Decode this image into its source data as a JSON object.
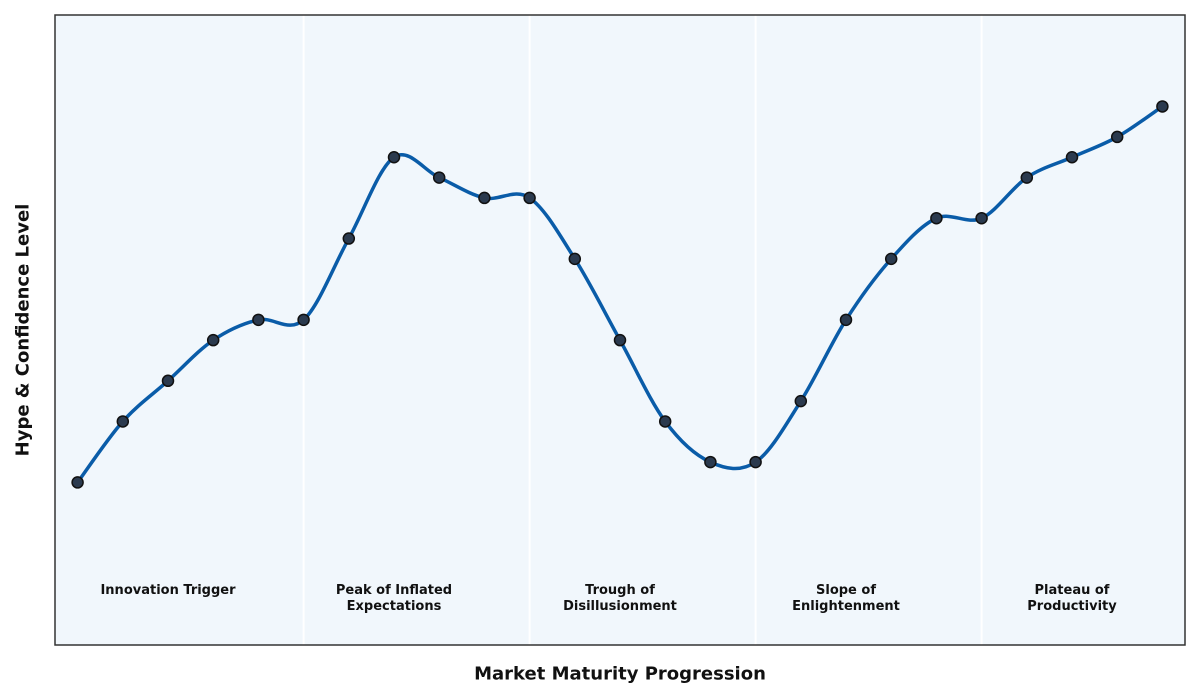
{
  "chart_data": {
    "type": "line",
    "xlabel": "Market Maturity Progression",
    "ylabel": "Hype & Confidence Level",
    "xlim": [
      -0.5,
      24.5
    ],
    "ylim": [
      0,
      31
    ],
    "grid": false,
    "colors": {
      "line": "#0a5ca8",
      "marker": "#2b3a4e",
      "marker_edge": "#111111",
      "background": "#f1f7fc",
      "separator": "#ffffff",
      "frame": "#333333"
    },
    "phase_boundaries": [
      5,
      10,
      15,
      20
    ],
    "phases": [
      {
        "label": "Innovation Trigger",
        "x_center": 2
      },
      {
        "label": "Peak of Inflated\nExpectations",
        "x_center": 7
      },
      {
        "label": "Trough of\nDisillusionment",
        "x_center": 12
      },
      {
        "label": "Slope of\nEnlightenment",
        "x_center": 17
      },
      {
        "label": "Plateau of\nProductivity",
        "x_center": 22
      }
    ],
    "series": [
      {
        "x": [
          0,
          1,
          2,
          3,
          4,
          5,
          6,
          7,
          8,
          9,
          10,
          11,
          12,
          13,
          14,
          15,
          16,
          17,
          18,
          19,
          20,
          21,
          22,
          23,
          24
        ],
        "values": [
          8,
          11,
          13,
          15,
          16,
          16,
          20,
          24,
          23,
          22,
          22,
          19,
          15,
          11,
          9,
          9,
          12,
          16,
          19,
          21,
          21,
          23,
          24,
          25,
          26.5
        ]
      }
    ]
  }
}
